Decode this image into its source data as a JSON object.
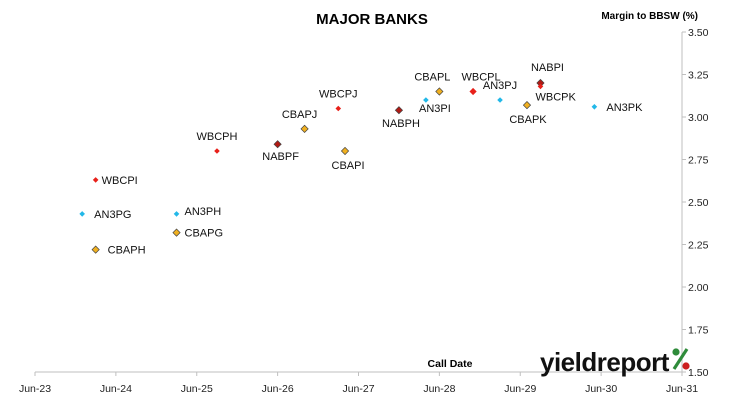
{
  "chart_data": {
    "type": "scatter",
    "title": "MAJOR BANKS",
    "ylabel": "Margin to BBSW (%)",
    "xlabel": "Call Date",
    "x_ticks": [
      "Jun-23",
      "Jun-24",
      "Jun-25",
      "Jun-26",
      "Jun-27",
      "Jun-28",
      "Jun-29",
      "Jun-30",
      "Jun-31"
    ],
    "y_ticks": [
      "1.50",
      "1.75",
      "2.00",
      "2.25",
      "2.50",
      "2.75",
      "3.00",
      "3.25",
      "3.50"
    ],
    "ylim": [
      1.5,
      3.5
    ],
    "xlim": [
      "2023-06",
      "2031-06"
    ],
    "y_axis_position": "right",
    "grid": false,
    "colors": {
      "WBC": "#e8201a",
      "NAB": "#b01a14",
      "CBA": "#f0b020",
      "ANZ": "#22b8e8",
      "marker_edge": "#444444",
      "axis": "#bfbfbf"
    },
    "points": [
      {
        "label": "WBCPI",
        "issuer": "WBC",
        "date": "2024-03",
        "y": 2.63
      },
      {
        "label": "AN3PG",
        "issuer": "ANZ",
        "date": "2024-01",
        "y": 2.43
      },
      {
        "label": "CBAPH",
        "issuer": "CBA",
        "date": "2024-03",
        "y": 2.22
      },
      {
        "label": "AN3PH",
        "issuer": "ANZ",
        "date": "2025-03",
        "y": 2.43
      },
      {
        "label": "CBAPG",
        "issuer": "CBA",
        "date": "2025-03",
        "y": 2.32
      },
      {
        "label": "WBCPH",
        "issuer": "WBC",
        "date": "2025-09",
        "y": 2.8
      },
      {
        "label": "NABPF",
        "issuer": "NAB",
        "date": "2026-06",
        "y": 2.84
      },
      {
        "label": "CBAPJ",
        "issuer": "CBA",
        "date": "2026-10",
        "y": 2.93
      },
      {
        "label": "WBCPJ",
        "issuer": "WBC",
        "date": "2027-03",
        "y": 3.05
      },
      {
        "label": "CBAPI",
        "issuer": "CBA",
        "date": "2027-04",
        "y": 2.8
      },
      {
        "label": "NABPH",
        "issuer": "NAB",
        "date": "2027-12",
        "y": 3.04
      },
      {
        "label": "AN3PI",
        "issuer": "ANZ",
        "date": "2028-04",
        "y": 3.1
      },
      {
        "label": "CBAPL",
        "issuer": "CBA",
        "date": "2028-06",
        "y": 3.15
      },
      {
        "label": "WBCPL",
        "issuer": "WBC",
        "date": "2028-11",
        "y": 3.15
      },
      {
        "label": "AN3PJ",
        "issuer": "ANZ",
        "date": "2029-03",
        "y": 3.1
      },
      {
        "label": "CBAPK",
        "issuer": "CBA",
        "date": "2029-07",
        "y": 3.07
      },
      {
        "label": "NABPI",
        "issuer": "NAB",
        "date": "2029-09",
        "y": 3.2
      },
      {
        "label": "WBCPK",
        "issuer": "WBC",
        "date": "2029-09",
        "y": 3.18
      },
      {
        "label": "AN3PK",
        "issuer": "ANZ",
        "date": "2030-05",
        "y": 3.06
      }
    ]
  },
  "brand": {
    "name": "yieldreport",
    "symbol": "%",
    "symbol_color_top": "#2e8b3a",
    "symbol_color_bottom": "#cc1f1f"
  }
}
